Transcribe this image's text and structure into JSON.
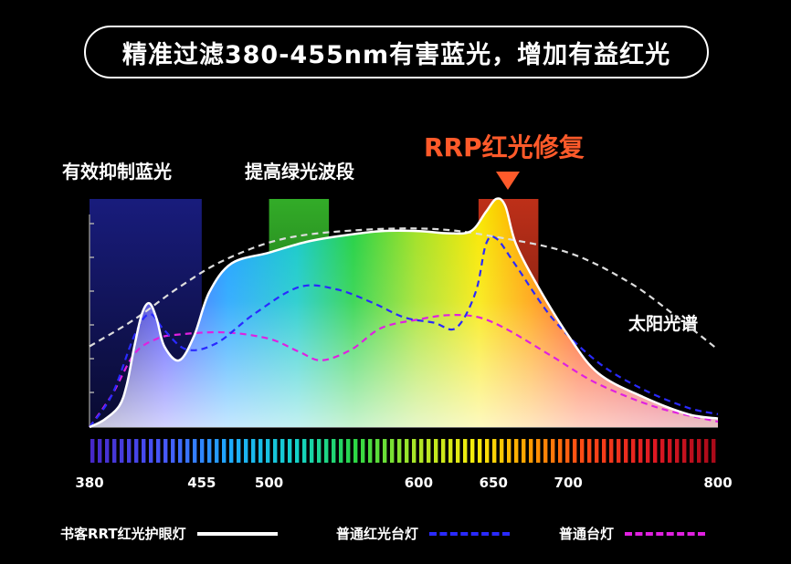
{
  "header": {
    "title": "精准过滤380-455nm有害蓝光，增加有益红光"
  },
  "annotations": {
    "blue_band": "有效抑制蓝光",
    "green_band": "提高绿光波段",
    "red_band": "RRP红光修复",
    "sun_label": "太阳光谱"
  },
  "colors": {
    "rrt_line": "#ffffff",
    "red_lamp_line": "#2a2aff",
    "normal_lamp_line": "#e020e0",
    "sun_line": "#dddddd",
    "rrp_accent": "#ff5a2a",
    "background": "#000000"
  },
  "chart_data": {
    "type": "line",
    "title": "",
    "xlabel": "",
    "ylabel": "",
    "xlim": [
      380,
      800
    ],
    "x_ticks": [
      380,
      455,
      500,
      600,
      650,
      700,
      800
    ],
    "x_tick_labels": [
      "380",
      "455",
      "500",
      "600",
      "650",
      "700",
      "800"
    ],
    "highlight_bands": [
      {
        "label": "有效抑制蓝光",
        "from": 380,
        "to": 455,
        "color": "#1b1f8a"
      },
      {
        "label": "提高绿光波段",
        "from": 500,
        "to": 540,
        "color": "#35b52a"
      },
      {
        "label": "RRP红光修复",
        "from": 640,
        "to": 680,
        "color": "#d9401a"
      }
    ],
    "series": [
      {
        "name": "书客RRT红光护眼灯",
        "style": "solid",
        "color": "#ffffff",
        "points": [
          [
            380,
            0.0
          ],
          [
            390,
            0.07
          ],
          [
            400,
            0.2
          ],
          [
            405,
            0.4
          ],
          [
            410,
            0.75
          ],
          [
            415,
            1.05
          ],
          [
            420,
            1.15
          ],
          [
            425,
            1.0
          ],
          [
            430,
            0.75
          ],
          [
            440,
            0.62
          ],
          [
            450,
            0.85
          ],
          [
            460,
            1.25
          ],
          [
            475,
            1.52
          ],
          [
            500,
            1.62
          ],
          [
            525,
            1.72
          ],
          [
            550,
            1.78
          ],
          [
            575,
            1.82
          ],
          [
            600,
            1.82
          ],
          [
            620,
            1.8
          ],
          [
            635,
            1.82
          ],
          [
            645,
            2.0
          ],
          [
            652,
            2.12
          ],
          [
            658,
            2.05
          ],
          [
            665,
            1.7
          ],
          [
            680,
            1.3
          ],
          [
            700,
            0.85
          ],
          [
            720,
            0.5
          ],
          [
            750,
            0.28
          ],
          [
            780,
            0.12
          ],
          [
            800,
            0.08
          ]
        ]
      },
      {
        "name": "普通红光台灯",
        "style": "dashed",
        "color": "#2a2aff",
        "points": [
          [
            380,
            0.0
          ],
          [
            395,
            0.3
          ],
          [
            410,
            0.85
          ],
          [
            420,
            1.05
          ],
          [
            430,
            0.9
          ],
          [
            445,
            0.72
          ],
          [
            465,
            0.78
          ],
          [
            490,
            1.05
          ],
          [
            520,
            1.3
          ],
          [
            545,
            1.28
          ],
          [
            570,
            1.15
          ],
          [
            590,
            1.02
          ],
          [
            610,
            0.97
          ],
          [
            625,
            0.92
          ],
          [
            638,
            1.25
          ],
          [
            645,
            1.7
          ],
          [
            652,
            1.75
          ],
          [
            665,
            1.5
          ],
          [
            690,
            1.0
          ],
          [
            720,
            0.6
          ],
          [
            750,
            0.35
          ],
          [
            780,
            0.18
          ],
          [
            800,
            0.12
          ]
        ]
      },
      {
        "name": "普通台灯",
        "style": "dashed",
        "color": "#e020e0",
        "points": [
          [
            380,
            0.0
          ],
          [
            395,
            0.3
          ],
          [
            410,
            0.68
          ],
          [
            425,
            0.82
          ],
          [
            440,
            0.86
          ],
          [
            470,
            0.88
          ],
          [
            500,
            0.82
          ],
          [
            520,
            0.7
          ],
          [
            535,
            0.62
          ],
          [
            555,
            0.72
          ],
          [
            575,
            0.92
          ],
          [
            600,
            1.0
          ],
          [
            620,
            1.04
          ],
          [
            640,
            1.02
          ],
          [
            660,
            0.9
          ],
          [
            690,
            0.65
          ],
          [
            720,
            0.4
          ],
          [
            760,
            0.18
          ],
          [
            800,
            0.05
          ]
        ]
      },
      {
        "name": "太阳光谱",
        "style": "dashed",
        "color": "#dddddd",
        "points": [
          [
            380,
            0.75
          ],
          [
            410,
            1.0
          ],
          [
            440,
            1.3
          ],
          [
            470,
            1.55
          ],
          [
            510,
            1.75
          ],
          [
            560,
            1.83
          ],
          [
            610,
            1.84
          ],
          [
            650,
            1.77
          ],
          [
            700,
            1.62
          ],
          [
            740,
            1.35
          ],
          [
            770,
            1.05
          ],
          [
            800,
            0.72
          ]
        ]
      }
    ]
  },
  "legend": [
    {
      "label": "书客RRT红光护眼灯"
    },
    {
      "label": "普通红光台灯"
    },
    {
      "label": "普通台灯"
    }
  ]
}
